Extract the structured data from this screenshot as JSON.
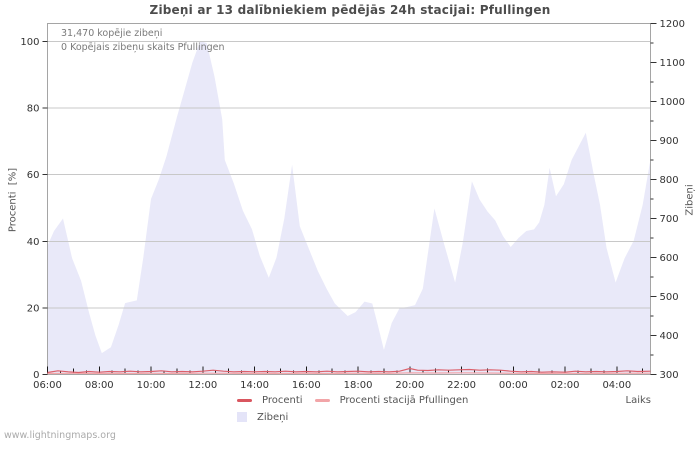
{
  "title": "Zibeņi ar 13 dalībniekiem pēdējās 24h stacijai: Pfullingen",
  "watermark": "www.lightningmaps.org",
  "annotations": {
    "total": "31,470 kopējie zibeņi",
    "station": "0 Kopējais zibeņu skaits Pfullingen"
  },
  "legend": [
    {
      "label": "Procenti",
      "color": "#d9565f",
      "swatch": "line"
    },
    {
      "label": "Procenti stacijā Pfullingen",
      "color": "#f2a5a8",
      "swatch": "line"
    },
    {
      "label": "Zibeņi",
      "color": "#e4e4f8",
      "swatch": "area"
    }
  ],
  "colors": {
    "area_fill": "#e9e9f9",
    "gridline": "#c8c8c8",
    "plot_border": "#a5a5a5",
    "tick": "#1a1a1a",
    "procenti_line": "#dc5f6a",
    "station_line": "#f2a5a8"
  },
  "chart_data": {
    "type": "area",
    "x_label": "Laiks",
    "x_domain_hours": [
      6,
      29.3
    ],
    "x_ticks": [
      {
        "t": 6,
        "label": "06:00"
      },
      {
        "t": 8,
        "label": "08:00"
      },
      {
        "t": 10,
        "label": "10:00"
      },
      {
        "t": 12,
        "label": "12:00"
      },
      {
        "t": 14,
        "label": "14:00"
      },
      {
        "t": 16,
        "label": "16:00"
      },
      {
        "t": 18,
        "label": "18:00"
      },
      {
        "t": 20,
        "label": "20:00"
      },
      {
        "t": 22,
        "label": "22:00"
      },
      {
        "t": 24,
        "label": "00:00"
      },
      {
        "t": 26,
        "label": "02:00"
      },
      {
        "t": 28,
        "label": "04:00"
      }
    ],
    "x_minor_tick_hours": 0.5,
    "y_left": {
      "label": "Procenti  [%]",
      "min": 0,
      "max": 100,
      "ticks": [
        0,
        20,
        40,
        60,
        80,
        100
      ],
      "gridlines": [
        20,
        40,
        60,
        80,
        100
      ]
    },
    "y_right": {
      "label": "Zibeņi",
      "min": 300,
      "max": 1200,
      "ticks": [
        300,
        400,
        500,
        600,
        700,
        800,
        900,
        1000,
        1100,
        1200
      ],
      "minor_step": 50
    },
    "series": [
      {
        "name": "Zibeņi",
        "type": "area",
        "axis": "right",
        "points": [
          [
            6.0,
            630
          ],
          [
            6.25,
            668
          ],
          [
            6.6,
            700
          ],
          [
            6.95,
            598
          ],
          [
            7.3,
            540
          ],
          [
            7.6,
            460
          ],
          [
            7.85,
            400
          ],
          [
            8.1,
            355
          ],
          [
            8.45,
            370
          ],
          [
            8.75,
            428
          ],
          [
            9.0,
            483
          ],
          [
            9.45,
            490
          ],
          [
            9.7,
            600
          ],
          [
            10.0,
            750
          ],
          [
            10.3,
            800
          ],
          [
            10.6,
            860
          ],
          [
            11.0,
            960
          ],
          [
            11.3,
            1030
          ],
          [
            11.6,
            1100
          ],
          [
            11.9,
            1155
          ],
          [
            12.15,
            1150
          ],
          [
            12.45,
            1065
          ],
          [
            12.75,
            955
          ],
          [
            12.85,
            850
          ],
          [
            13.2,
            790
          ],
          [
            13.55,
            720
          ],
          [
            13.9,
            672
          ],
          [
            14.2,
            605
          ],
          [
            14.55,
            548
          ],
          [
            14.85,
            600
          ],
          [
            15.15,
            700
          ],
          [
            15.45,
            838
          ],
          [
            15.75,
            680
          ],
          [
            16.1,
            622
          ],
          [
            16.45,
            565
          ],
          [
            16.8,
            518
          ],
          [
            17.1,
            482
          ],
          [
            17.6,
            450
          ],
          [
            17.9,
            460
          ],
          [
            18.25,
            487
          ],
          [
            18.55,
            482
          ],
          [
            18.75,
            430
          ],
          [
            19.0,
            363
          ],
          [
            19.3,
            432
          ],
          [
            19.6,
            470
          ],
          [
            19.9,
            473
          ],
          [
            20.2,
            478
          ],
          [
            20.5,
            520
          ],
          [
            20.95,
            726
          ],
          [
            21.3,
            640
          ],
          [
            21.75,
            536
          ],
          [
            22.05,
            640
          ],
          [
            22.4,
            795
          ],
          [
            22.7,
            748
          ],
          [
            23.0,
            718
          ],
          [
            23.3,
            695
          ],
          [
            23.6,
            655
          ],
          [
            23.9,
            627
          ],
          [
            24.2,
            650
          ],
          [
            24.5,
            668
          ],
          [
            24.8,
            672
          ],
          [
            25.0,
            690
          ],
          [
            25.2,
            735
          ],
          [
            25.4,
            830
          ],
          [
            25.65,
            757
          ],
          [
            25.95,
            788
          ],
          [
            26.25,
            850
          ],
          [
            26.8,
            920
          ],
          [
            27.1,
            815
          ],
          [
            27.35,
            735
          ],
          [
            27.6,
            625
          ],
          [
            27.95,
            536
          ],
          [
            28.3,
            598
          ],
          [
            28.65,
            643
          ],
          [
            29.0,
            735
          ],
          [
            29.3,
            852
          ]
        ]
      },
      {
        "name": "Procenti stacijā Pfullingen",
        "type": "line",
        "axis": "left",
        "points": [
          [
            6.0,
            0.3
          ],
          [
            7.0,
            0.35
          ],
          [
            8.0,
            0.3
          ],
          [
            9.0,
            0.3
          ],
          [
            10.0,
            0.35
          ],
          [
            11.0,
            0.3
          ],
          [
            12.0,
            0.4
          ],
          [
            13.0,
            0.35
          ],
          [
            14.0,
            0.3
          ],
          [
            15.0,
            0.3
          ],
          [
            16.0,
            0.35
          ],
          [
            17.0,
            0.3
          ],
          [
            18.0,
            0.4
          ],
          [
            19.0,
            0.3
          ],
          [
            20.0,
            0.5
          ],
          [
            21.0,
            0.45
          ],
          [
            22.0,
            0.5
          ],
          [
            23.0,
            0.45
          ],
          [
            24.0,
            0.35
          ],
          [
            25.0,
            0.3
          ],
          [
            26.0,
            0.35
          ],
          [
            27.0,
            0.3
          ],
          [
            28.0,
            0.35
          ],
          [
            29.3,
            0.4
          ]
        ]
      },
      {
        "name": "Procenti",
        "type": "line",
        "axis": "left",
        "points": [
          [
            6.0,
            0.6
          ],
          [
            6.4,
            1.1
          ],
          [
            6.8,
            0.8
          ],
          [
            7.2,
            0.6
          ],
          [
            7.6,
            0.9
          ],
          [
            8.0,
            0.7
          ],
          [
            8.4,
            0.9
          ],
          [
            8.8,
            0.8
          ],
          [
            9.2,
            1.0
          ],
          [
            9.6,
            0.8
          ],
          [
            10.0,
            0.9
          ],
          [
            10.4,
            1.1
          ],
          [
            10.8,
            0.8
          ],
          [
            11.2,
            0.9
          ],
          [
            11.6,
            0.8
          ],
          [
            12.0,
            1.0
          ],
          [
            12.4,
            1.3
          ],
          [
            12.8,
            1.0
          ],
          [
            13.2,
            0.8
          ],
          [
            13.6,
            0.9
          ],
          [
            14.0,
            0.8
          ],
          [
            14.4,
            0.9
          ],
          [
            14.8,
            0.8
          ],
          [
            15.2,
            1.0
          ],
          [
            15.6,
            0.8
          ],
          [
            16.0,
            0.9
          ],
          [
            16.4,
            0.8
          ],
          [
            16.8,
            1.0
          ],
          [
            17.2,
            0.8
          ],
          [
            17.6,
            0.9
          ],
          [
            18.0,
            1.0
          ],
          [
            18.4,
            0.8
          ],
          [
            18.8,
            0.9
          ],
          [
            19.2,
            0.8
          ],
          [
            19.6,
            1.0
          ],
          [
            20.0,
            1.8
          ],
          [
            20.3,
            1.3
          ],
          [
            20.7,
            1.2
          ],
          [
            21.1,
            1.4
          ],
          [
            21.5,
            1.3
          ],
          [
            21.9,
            1.4
          ],
          [
            22.3,
            1.5
          ],
          [
            22.7,
            1.3
          ],
          [
            23.1,
            1.4
          ],
          [
            23.5,
            1.3
          ],
          [
            23.9,
            1.0
          ],
          [
            24.3,
            0.8
          ],
          [
            24.7,
            0.9
          ],
          [
            25.1,
            0.7
          ],
          [
            25.5,
            0.8
          ],
          [
            26.0,
            0.7
          ],
          [
            26.4,
            1.0
          ],
          [
            26.8,
            0.8
          ],
          [
            27.2,
            0.9
          ],
          [
            27.6,
            0.8
          ],
          [
            28.0,
            0.9
          ],
          [
            28.4,
            1.1
          ],
          [
            28.8,
            0.9
          ],
          [
            29.3,
            1.0
          ]
        ]
      }
    ]
  }
}
